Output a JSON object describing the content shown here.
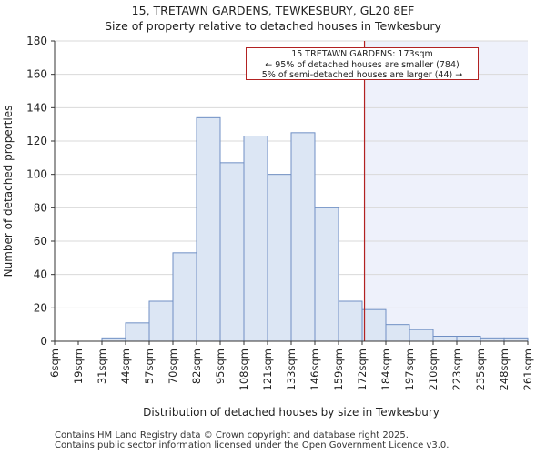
{
  "chart_data": {
    "type": "histogram",
    "title": "15, TRETAWN GARDENS, TEWKESBURY, GL20 8EF",
    "subtitle": "Size of property relative to detached houses in Tewkesbury",
    "xlabel": "Distribution of detached houses by size in Tewkesbury",
    "ylabel": "Number of detached properties",
    "ylim": [
      0,
      180
    ],
    "yticks": [
      0,
      20,
      40,
      60,
      80,
      100,
      120,
      140,
      160,
      180
    ],
    "categories": [
      "6sqm",
      "19sqm",
      "31sqm",
      "44sqm",
      "57sqm",
      "70sqm",
      "82sqm",
      "95sqm",
      "108sqm",
      "121sqm",
      "133sqm",
      "146sqm",
      "159sqm",
      "172sqm",
      "184sqm",
      "197sqm",
      "210sqm",
      "223sqm",
      "235sqm",
      "248sqm",
      "261sqm"
    ],
    "values": [
      0,
      0,
      2,
      11,
      24,
      53,
      134,
      107,
      123,
      100,
      125,
      80,
      24,
      19,
      10,
      7,
      3,
      3,
      2,
      2
    ],
    "marker_value": 173,
    "marker_label": "15 TRETAWN GARDENS: 173sqm",
    "annotation_lines": [
      "15 TRETAWN GARDENS: 173sqm",
      "← 95% of detached houses are smaller (784)",
      "5% of semi-detached houses are larger (44) →"
    ],
    "colors": {
      "bar_fill": "#dce6f4",
      "bar_edge": "#6f8fc4",
      "marker": "#b22222",
      "highlight": "#eef1fb"
    }
  },
  "footer": {
    "line1": "Contains HM Land Registry data © Crown copyright and database right 2025.",
    "line2": "Contains public sector information licensed under the Open Government Licence v3.0."
  }
}
